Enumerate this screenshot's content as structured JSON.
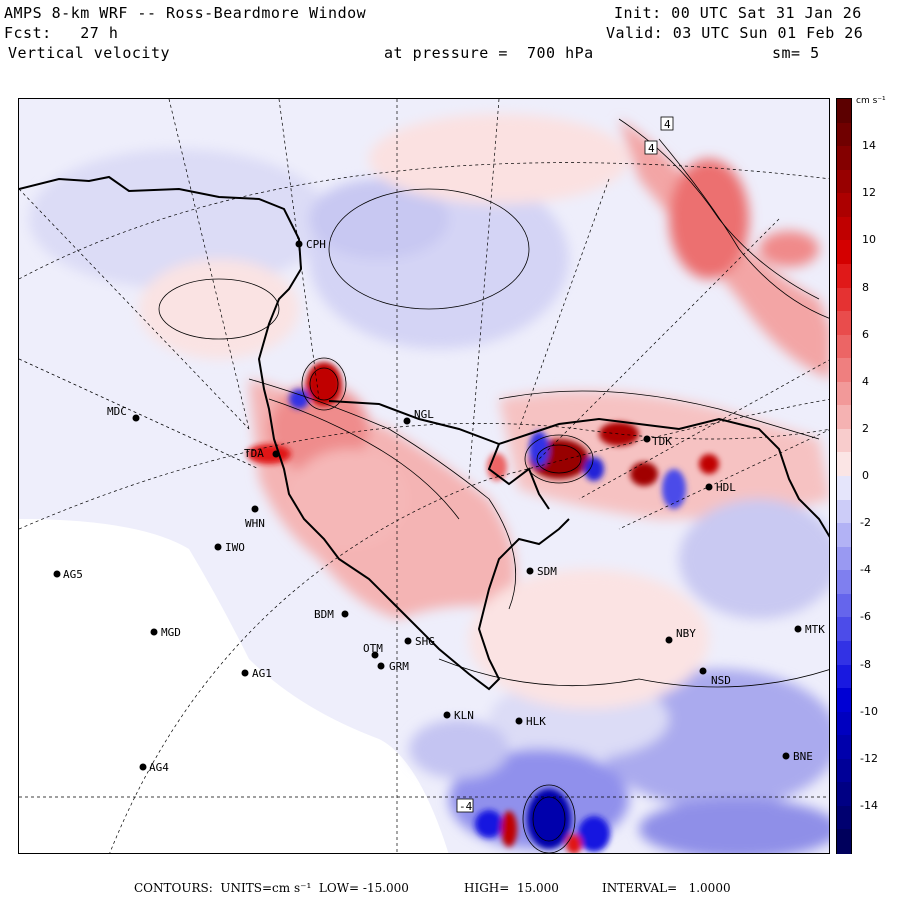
{
  "header": {
    "title": "AMPS 8-km WRF -- Ross-Beardmore Window",
    "forecast": "Fcst:   27 h",
    "field": "Vertical velocity",
    "pressure": "at pressure =  700 hPa",
    "init": "Init: 00 UTC Sat 31 Jan 26",
    "valid": "Valid: 03 UTC Sun 01 Feb 26",
    "smoothing": "sm= 5"
  },
  "colorbar": {
    "units": "cm s⁻¹",
    "ticks": [
      "14",
      "12",
      "10",
      "8",
      "6",
      "4",
      "2",
      "0",
      "-2",
      "-4",
      "-6",
      "-8",
      "-10",
      "-12",
      "-14"
    ],
    "min": -16,
    "max": 16,
    "colors_positive": [
      "#fbe5e5",
      "#f8cccc",
      "#f5b2b2",
      "#f29999",
      "#ef7f7f",
      "#ec6565",
      "#e94c4c",
      "#e53232",
      "#e01919",
      "#d40000",
      "#c00000",
      "#ac0000",
      "#980000",
      "#840000",
      "#700000",
      "#5c0000"
    ],
    "colors_negative": [
      "#e5e5fb",
      "#ccccf8",
      "#b2b2f5",
      "#9999f2",
      "#7f7fef",
      "#6565ec",
      "#4c4ce9",
      "#3232e5",
      "#1919e0",
      "#0000d4",
      "#0000c0",
      "#0000ac",
      "#000098",
      "#000084",
      "#000070",
      "#00005c"
    ]
  },
  "stations": [
    {
      "name": "CPH"
    },
    {
      "name": "MDC"
    },
    {
      "name": "TDA"
    },
    {
      "name": "NGL"
    },
    {
      "name": "WHN"
    },
    {
      "name": "IWO"
    },
    {
      "name": "AG5"
    },
    {
      "name": "MGD"
    },
    {
      "name": "BDM"
    },
    {
      "name": "OTM"
    },
    {
      "name": "SHG"
    },
    {
      "name": "GRM"
    },
    {
      "name": "AG1"
    },
    {
      "name": "KLN"
    },
    {
      "name": "HLK"
    },
    {
      "name": "AG4"
    },
    {
      "name": "SDM"
    },
    {
      "name": "NBY"
    },
    {
      "name": "NSD"
    },
    {
      "name": "MTK"
    },
    {
      "name": "BNE"
    },
    {
      "name": "TDK"
    },
    {
      "name": "HDL"
    }
  ],
  "contour_labels": [
    "4",
    "4",
    "-4"
  ],
  "footer": {
    "contours": "CONTOURS:  UNITS=cm s⁻¹  LOW= -15.000",
    "high": "HIGH=  15.000",
    "interval": "INTERVAL=   1.0000"
  }
}
